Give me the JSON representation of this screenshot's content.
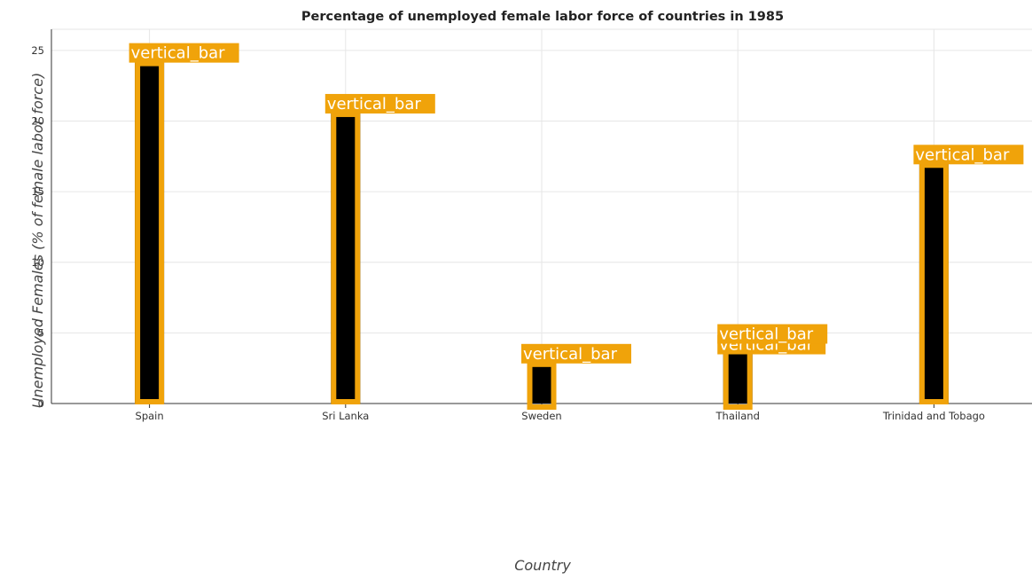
{
  "chart_data": {
    "type": "bar",
    "title": "Percentage of unemployed female labor force of countries in 1985",
    "xlabel": "Country",
    "ylabel": "Unemployed Females (% of female labor force)",
    "categories": [
      "Spain",
      "Sri Lanka",
      "Sweden",
      "Thailand",
      "Trinidad and Tobago"
    ],
    "values": [
      24.2,
      20.6,
      2.9,
      4.3,
      17.0
    ],
    "ylim": [
      0,
      26.5
    ],
    "yticks": [
      0,
      5,
      10,
      15,
      20,
      25
    ],
    "grid": true,
    "bar_color": "#000000",
    "highlight_color": "#f0a30a",
    "annotation_label": "vertical_bar"
  }
}
